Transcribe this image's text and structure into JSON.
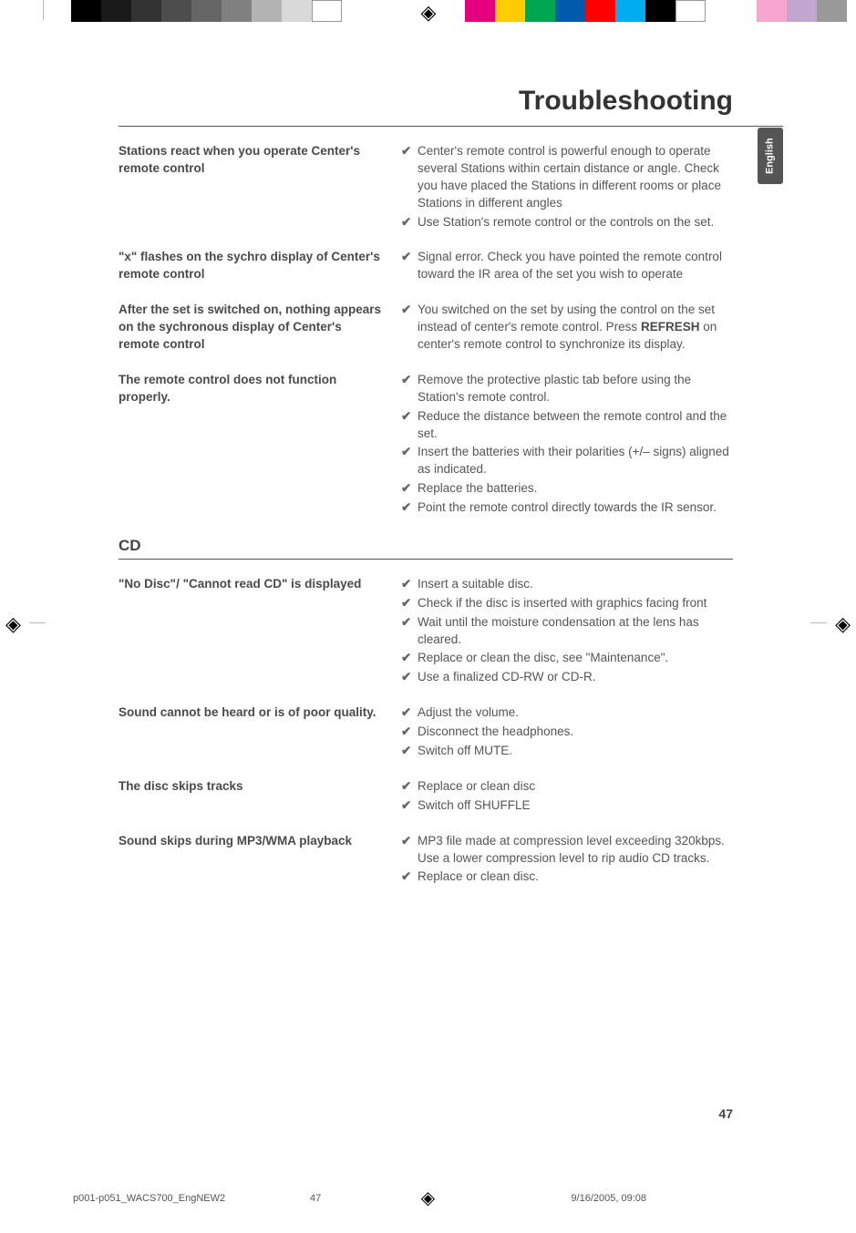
{
  "header": {
    "title": "Troubleshooting",
    "lang_tab": "English"
  },
  "topmarks": {
    "gray_levels": [
      "#000000",
      "#1a1a1a",
      "#333333",
      "#4d4d4d",
      "#666666",
      "#808080",
      "#b3b3b3",
      "#d9d9d9",
      "#ffffff"
    ],
    "color_bars": [
      "#e60080",
      "#ffcc00",
      "#00a650",
      "#005bac",
      "#ff0000",
      "#00aeef",
      "#000000",
      "#ffffff"
    ],
    "extra_bars": [
      "#f7a6cf",
      "#c1a6d0",
      "#999999"
    ]
  },
  "sections": [
    {
      "head": null,
      "rows": [
        {
          "problem": "Stations react when you operate Center's remote control",
          "solutions": [
            "Center's remote control is powerful enough to operate several Stations within certain distance or angle. Check you have placed the Stations in different rooms or place Stations in different angles",
            "Use Station's remote control or the controls on the set."
          ]
        },
        {
          "problem": "\"x\" flashes on the sychro display of Center's remote control",
          "solutions": [
            "Signal error. Check you have pointed the remote control toward the IR area of the set you wish to operate"
          ]
        },
        {
          "problem": "After the set is switched on, nothing appears on the sychronous display of Center's remote control",
          "solutions": [
            "You switched on the set by using the control on the set instead of center's remote control. Press <b>REFRESH</b> on center's remote control to synchronize its display."
          ]
        },
        {
          "problem": "The remote control does not function properly.",
          "solutions": [
            "Remove the protective plastic tab before using the Station's remote control.",
            "Reduce the distance between the remote control and the set.",
            " Insert the batteries with their polarities (+/– signs) aligned as indicated.",
            "Replace the batteries.",
            "Point the remote control directly towards the IR sensor."
          ]
        }
      ]
    },
    {
      "head": "CD",
      "rows": [
        {
          "problem": "\"No Disc\"/ \"Cannot read CD\" is displayed",
          "solutions": [
            "Insert a suitable disc.",
            "Check if the disc is inserted with graphics facing front",
            "Wait until the moisture condensation at the lens has cleared.",
            "Replace or clean the disc, see \"Maintenance\".",
            "Use a finalized CD-RW or CD-R."
          ]
        },
        {
          "problem": "Sound cannot be heard or is of poor quality.",
          "solutions": [
            "Adjust the volume.",
            "Disconnect the headphones.",
            "Switch off MUTE."
          ]
        },
        {
          "problem": " The disc skips tracks",
          "solutions": [
            "Replace or clean disc",
            "Switch off SHUFFLE"
          ]
        },
        {
          "problem": "Sound skips during MP3/WMA playback",
          "solutions": [
            "MP3 file made at compression level exceeding 320kbps. Use a lower compression level to rip audio CD tracks.",
            "Replace or clean disc."
          ]
        }
      ]
    }
  ],
  "page_number": "47",
  "footer": {
    "filename": "p001-p051_WACS700_EngNEW2",
    "page": "47",
    "date": "9/16/2005, 09:08"
  },
  "glyphs": {
    "check": "✔",
    "reg": "◈"
  }
}
